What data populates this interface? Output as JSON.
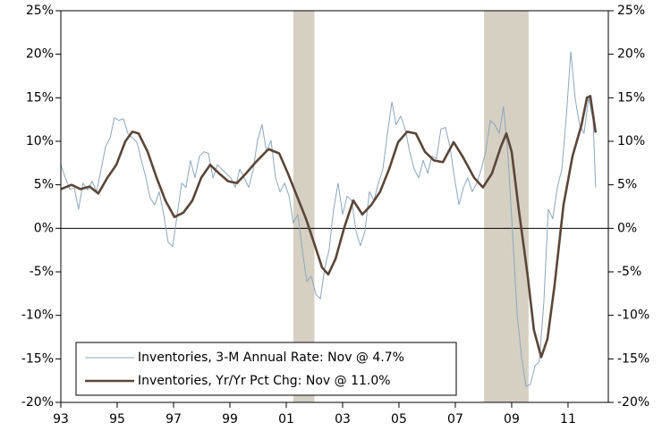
{
  "chart_data": {
    "type": "line",
    "xlim": [
      1993,
      2012.43
    ],
    "xticks": [
      {
        "value": 1993,
        "label": "93"
      },
      {
        "value": 1995,
        "label": "95"
      },
      {
        "value": 1997,
        "label": "97"
      },
      {
        "value": 1999,
        "label": "99"
      },
      {
        "value": 2001,
        "label": "01"
      },
      {
        "value": 2003,
        "label": "03"
      },
      {
        "value": 2005,
        "label": "05"
      },
      {
        "value": 2007,
        "label": "07"
      },
      {
        "value": 2009,
        "label": "09"
      },
      {
        "value": 2011,
        "label": "11"
      }
    ],
    "ylim": [
      -20,
      25
    ],
    "yticks": [
      {
        "value": -20,
        "label": "-20%"
      },
      {
        "value": -15,
        "label": "-15%"
      },
      {
        "value": -10,
        "label": "-10%"
      },
      {
        "value": -5,
        "label": "-5%"
      },
      {
        "value": 0,
        "label": "0%"
      },
      {
        "value": 5,
        "label": "5%"
      },
      {
        "value": 10,
        "label": "10%"
      },
      {
        "value": 15,
        "label": "15%"
      },
      {
        "value": 20,
        "label": "20%"
      },
      {
        "value": 25,
        "label": "25%"
      }
    ],
    "y2lim": [
      -20,
      25
    ],
    "y2ticks": [
      {
        "value": -20,
        "label": "-20%"
      },
      {
        "value": -15,
        "label": "-15%"
      },
      {
        "value": -10,
        "label": "-10%"
      },
      {
        "value": -5,
        "label": "-5%"
      },
      {
        "value": 0,
        "label": "0%"
      },
      {
        "value": 5,
        "label": "5%"
      },
      {
        "value": 10,
        "label": "10%"
      },
      {
        "value": 15,
        "label": "15%"
      },
      {
        "value": 20,
        "label": "20%"
      },
      {
        "value": 25,
        "label": "25%"
      }
    ],
    "shaded_periods": [
      [
        2001.25,
        2002.0
      ],
      [
        2008.02,
        2009.6
      ]
    ],
    "shade_color": "#d6d0c3",
    "legend": "bottom-left",
    "series": [
      {
        "name": "Inventories, 3-M Annual Rate: Nov @ 4.7%",
        "color": "#8ba6bf",
        "width": 1,
        "x": [
          1993.0,
          1993.16,
          1993.32,
          1993.48,
          1993.63,
          1993.79,
          1993.95,
          1994.11,
          1994.27,
          1994.43,
          1994.59,
          1994.75,
          1994.9,
          1995.06,
          1995.22,
          1995.38,
          1995.54,
          1995.7,
          1995.86,
          1996.02,
          1996.17,
          1996.33,
          1996.49,
          1996.65,
          1996.81,
          1996.97,
          1997.13,
          1997.29,
          1997.44,
          1997.6,
          1997.76,
          1997.92,
          1998.08,
          1998.24,
          1998.4,
          1998.56,
          1998.71,
          1998.87,
          1999.03,
          1999.19,
          1999.35,
          1999.51,
          1999.67,
          1999.83,
          1999.98,
          2000.14,
          2000.3,
          2000.46,
          2000.62,
          2000.78,
          2000.94,
          2001.1,
          2001.25,
          2001.41,
          2001.57,
          2001.73,
          2001.89,
          2002.05,
          2002.21,
          2002.37,
          2002.52,
          2002.68,
          2002.84,
          2003.0,
          2003.16,
          2003.32,
          2003.48,
          2003.63,
          2003.79,
          2003.95,
          2004.11,
          2004.27,
          2004.43,
          2004.59,
          2004.75,
          2004.9,
          2005.06,
          2005.22,
          2005.38,
          2005.54,
          2005.7,
          2005.86,
          2006.02,
          2006.17,
          2006.33,
          2006.49,
          2006.65,
          2006.81,
          2006.97,
          2007.13,
          2007.29,
          2007.44,
          2007.6,
          2007.76,
          2007.92,
          2008.08,
          2008.24,
          2008.4,
          2008.56,
          2008.71,
          2008.87,
          2009.03,
          2009.19,
          2009.35,
          2009.51,
          2009.67,
          2009.83,
          2009.98,
          2010.14,
          2010.3,
          2010.46,
          2010.62,
          2010.78,
          2010.94,
          2011.1,
          2011.25,
          2011.41,
          2011.57,
          2011.73,
          2011.89,
          2011.98
        ],
        "values": [
          7.3,
          5.8,
          4.5,
          4.6,
          2.2,
          5.2,
          4.4,
          5.4,
          4.2,
          6.8,
          9.4,
          10.4,
          12.7,
          12.4,
          12.6,
          10.9,
          10.4,
          9.9,
          7.8,
          5.8,
          3.5,
          2.7,
          4.2,
          1.6,
          -1.6,
          -2.1,
          1.6,
          5.2,
          4.7,
          7.8,
          5.8,
          8.3,
          8.8,
          8.6,
          5.8,
          7.3,
          6.8,
          6.3,
          5.8,
          4.7,
          6.8,
          5.8,
          4.7,
          6.8,
          10.1,
          11.9,
          8.8,
          10.1,
          5.8,
          4.2,
          5.2,
          3.7,
          0.6,
          1.6,
          -2.5,
          -6.1,
          -5.5,
          -7.6,
          -8.1,
          -4.5,
          -2.5,
          2.2,
          5.2,
          1.6,
          3.7,
          3.2,
          -0.4,
          -2,
          -0.4,
          4.2,
          3.2,
          5.2,
          6.8,
          10.9,
          14.5,
          11.9,
          12.9,
          11.4,
          8.8,
          6.8,
          5.8,
          7.8,
          6.3,
          8.3,
          8,
          11.4,
          11.6,
          9.4,
          5.8,
          2.7,
          4.7,
          5.8,
          4.2,
          5.2,
          6.8,
          8.8,
          12.4,
          11.9,
          10.9,
          14,
          8.3,
          -0.4,
          -9.7,
          -14.8,
          -18.2,
          -17.9,
          -15.8,
          -15.3,
          -8.6,
          2.2,
          1.1,
          4.7,
          6.8,
          12.9,
          20.3,
          15,
          11.9,
          10.9,
          15,
          12.5,
          4.7
        ]
      },
      {
        "name": "Inventories, Yr/Yr Pct Chg: Nov @ 11.0%",
        "color": "#5b4637",
        "width": 2.6,
        "x": [
          1993.0,
          1993.38,
          1993.7,
          1994.02,
          1994.33,
          1994.65,
          1994.97,
          1995.29,
          1995.54,
          1995.76,
          1996.08,
          1996.4,
          1996.71,
          1997.03,
          1997.35,
          1997.67,
          1997.98,
          1998.3,
          1998.62,
          1998.94,
          1999.25,
          1999.57,
          1999.89,
          2000.37,
          2000.75,
          2001.06,
          2001.38,
          2001.7,
          2002.02,
          2002.27,
          2002.49,
          2002.75,
          2003.06,
          2003.38,
          2003.7,
          2004.02,
          2004.33,
          2004.65,
          2004.97,
          2005.29,
          2005.6,
          2005.92,
          2006.24,
          2006.56,
          2006.94,
          2007.25,
          2007.67,
          2007.98,
          2008.3,
          2008.62,
          2008.81,
          2009.0,
          2009.25,
          2009.57,
          2009.79,
          2010.05,
          2010.27,
          2010.52,
          2010.84,
          2011.16,
          2011.48,
          2011.67,
          2011.79,
          2011.98
        ],
        "values": [
          4.5,
          5,
          4.5,
          4.8,
          4,
          5.8,
          7.3,
          10,
          11.1,
          10.9,
          8.8,
          5.8,
          3.2,
          1.3,
          1.8,
          3.2,
          5.8,
          7.3,
          6.3,
          5.4,
          5.2,
          6.3,
          7.5,
          9.1,
          8.6,
          6.3,
          3.7,
          1.1,
          -2,
          -4.5,
          -5.3,
          -3.5,
          0.1,
          3.2,
          1.6,
          2.7,
          4.2,
          6.8,
          9.9,
          11.1,
          10.9,
          8.8,
          7.8,
          7.6,
          9.9,
          8.3,
          5.8,
          4.7,
          6.3,
          9.4,
          10.9,
          8.8,
          2.2,
          -5.5,
          -11.7,
          -14.8,
          -12.7,
          -6.6,
          2.7,
          8.3,
          11.9,
          15,
          15.2,
          11
        ]
      }
    ]
  }
}
